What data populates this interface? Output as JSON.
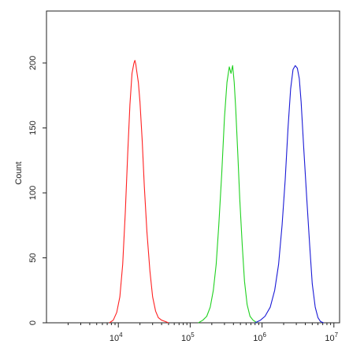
{
  "chart_data": {
    "type": "line",
    "title": "",
    "xlabel": "",
    "ylabel": "Count",
    "x_scale": "log",
    "xlim": [
      1000,
      12000000
    ],
    "ylim": [
      0,
      240
    ],
    "grid": false,
    "legend": "none",
    "x_ticks": [
      {
        "value": 10000,
        "base": "10",
        "exp": "4"
      },
      {
        "value": 100000,
        "base": "10",
        "exp": "5"
      },
      {
        "value": 1000000,
        "base": "10",
        "exp": "6"
      },
      {
        "value": 10000000,
        "base": "10",
        "exp": "7"
      }
    ],
    "y_ticks": [
      {
        "value": 0,
        "label": "0"
      },
      {
        "value": 50,
        "label": "50"
      },
      {
        "value": 100,
        "label": "100"
      },
      {
        "value": 150,
        "label": "150"
      },
      {
        "value": 200,
        "label": "200"
      }
    ],
    "series": [
      {
        "color": "#ff2020",
        "x": [
          7500,
          8500,
          9500,
          10500,
          11500,
          12500,
          13500,
          14500,
          15500,
          16500,
          17000,
          17500,
          18000,
          19000,
          20000,
          21500,
          23000,
          25000,
          27500,
          30000,
          33000,
          36000,
          40000,
          45000,
          50000
        ],
        "y": [
          0,
          2,
          8,
          20,
          45,
          85,
          130,
          168,
          192,
          200,
          202,
          199,
          194,
          185,
          170,
          140,
          105,
          70,
          40,
          20,
          9,
          4,
          2,
          1,
          0
        ]
      },
      {
        "color": "#1fd11f",
        "x": [
          130000,
          150000,
          170000,
          190000,
          210000,
          230000,
          250000,
          275000,
          300000,
          325000,
          350000,
          370000,
          390000,
          410000,
          430000,
          460000,
          490000,
          530000,
          570000,
          620000,
          680000,
          750000,
          850000
        ],
        "y": [
          0,
          2,
          5,
          12,
          25,
          45,
          75,
          115,
          158,
          185,
          197,
          192,
          198,
          185,
          165,
          130,
          95,
          60,
          32,
          14,
          5,
          2,
          0
        ]
      },
      {
        "color": "#1a1ad6",
        "x": [
          800000,
          950000,
          1100000,
          1300000,
          1500000,
          1700000,
          1900000,
          2100000,
          2300000,
          2500000,
          2700000,
          2900000,
          3100000,
          3300000,
          3500000,
          3800000,
          4200000,
          4600000,
          5000000,
          5500000,
          6000000,
          6500000,
          7200000
        ],
        "y": [
          0,
          2,
          5,
          12,
          25,
          45,
          75,
          110,
          150,
          180,
          195,
          198,
          196,
          188,
          170,
          135,
          95,
          60,
          30,
          12,
          4,
          1,
          0
        ]
      }
    ]
  }
}
